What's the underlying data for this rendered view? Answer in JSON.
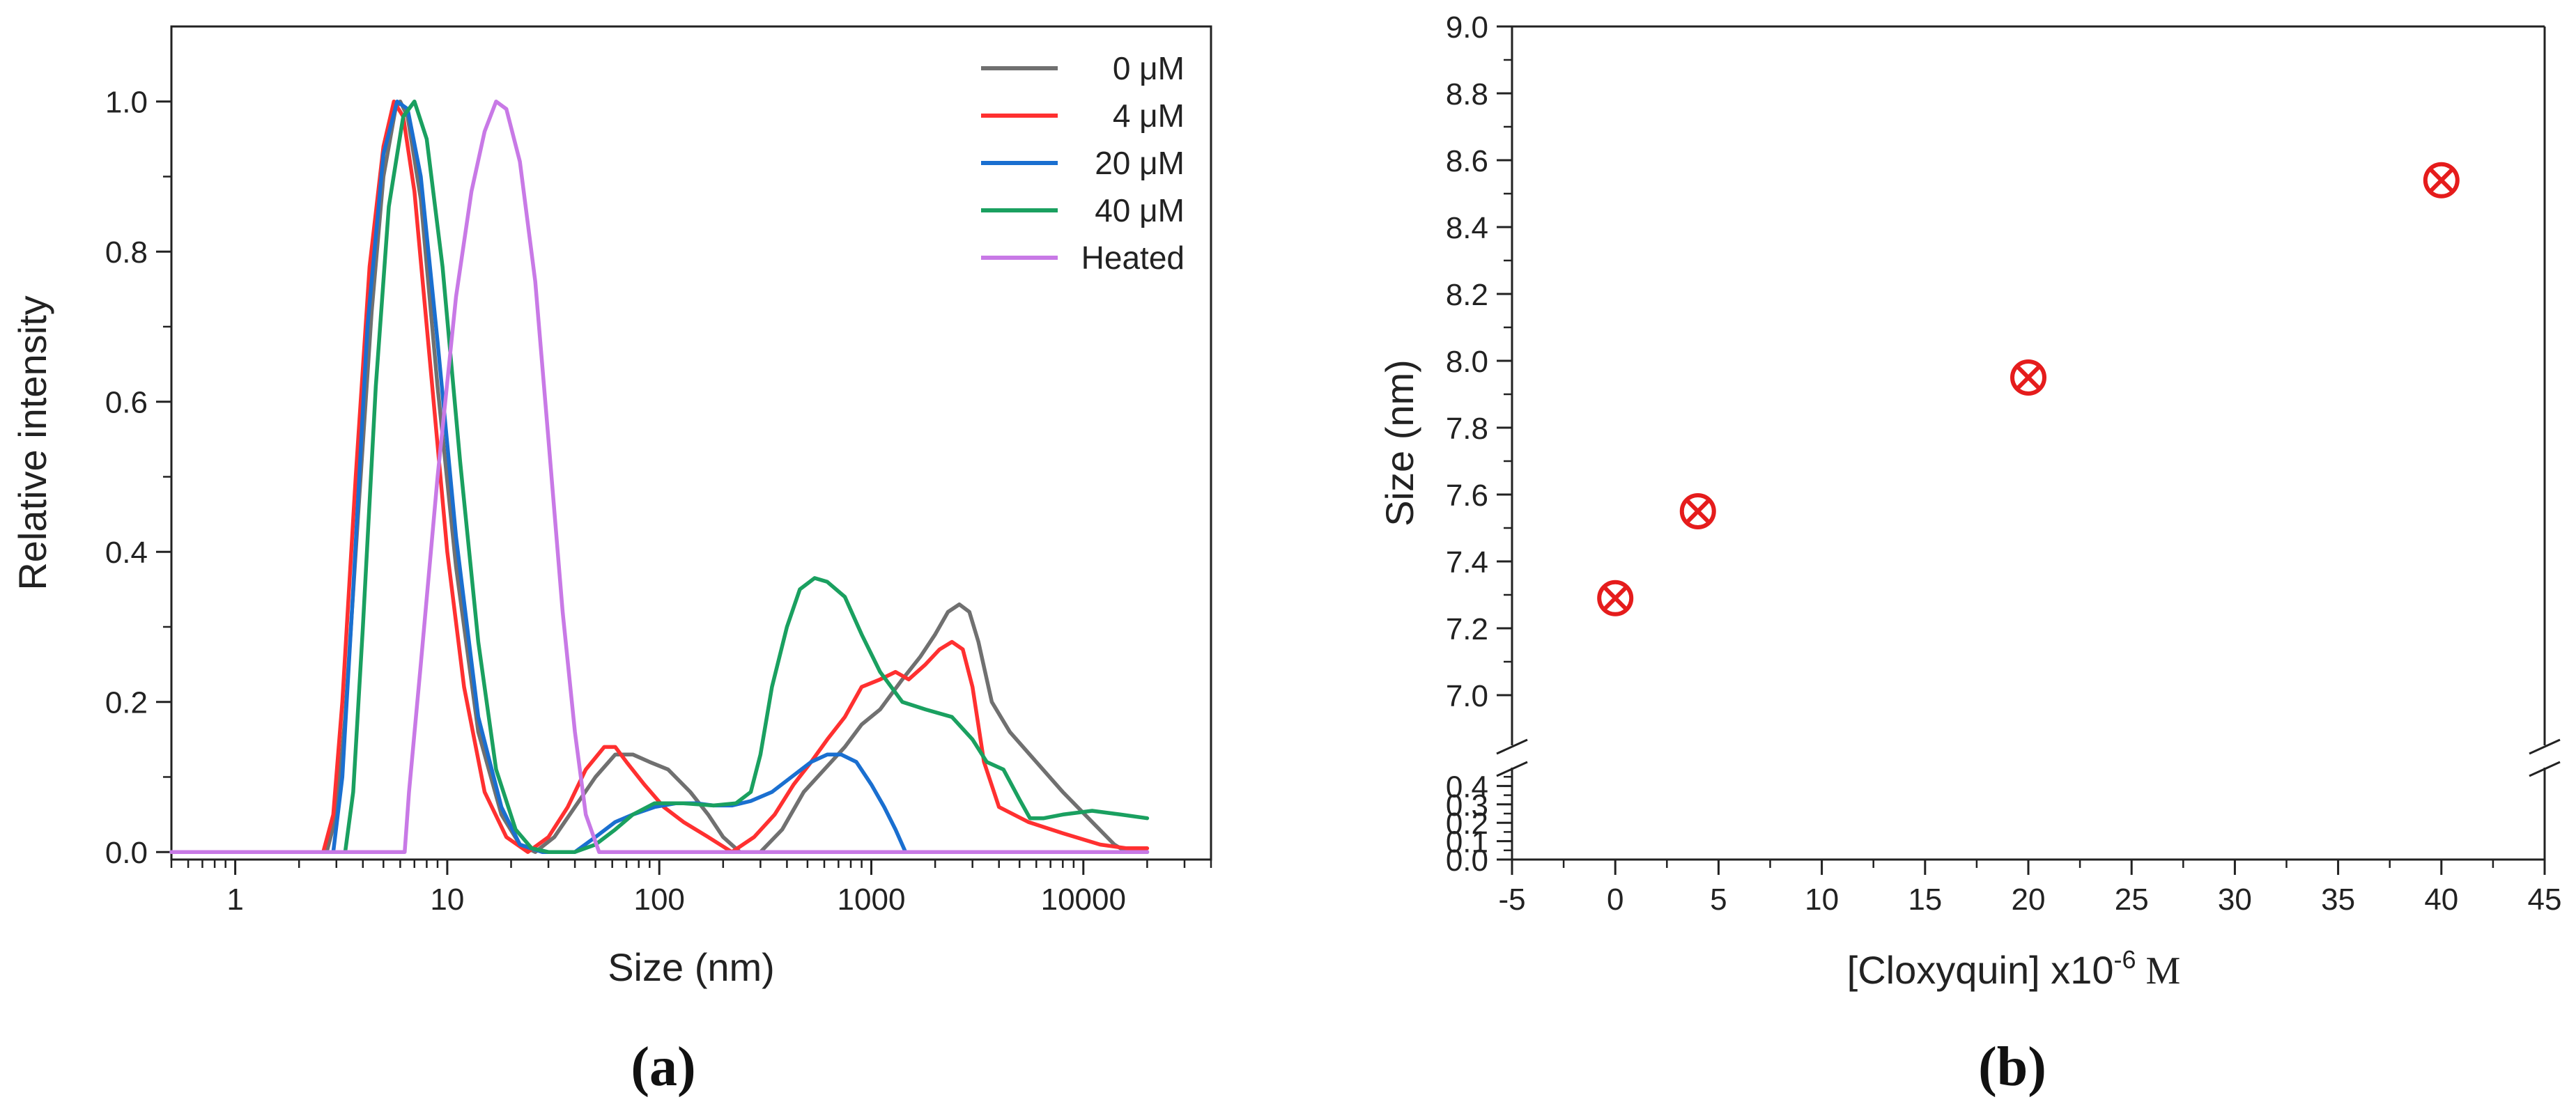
{
  "chart_data": [
    {
      "panel_label": "(a)",
      "type": "line",
      "xscale": "log",
      "xlabel": "Size (nm)",
      "ylabel": "Relative intensity",
      "xlim": [
        0.5,
        40000
      ],
      "ylim": [
        -0.01,
        1.1
      ],
      "x_ticks": [
        1,
        10,
        100,
        1000,
        10000
      ],
      "x_tick_labels": [
        "1",
        "10",
        "100",
        "1000",
        "10000"
      ],
      "y_ticks": [
        0.0,
        0.2,
        0.4,
        0.6,
        0.8,
        1.0
      ],
      "y_tick_labels": [
        "0.0",
        "0.2",
        "0.4",
        "0.6",
        "0.8",
        "1.0"
      ],
      "legend_position": "top-right",
      "series": [
        {
          "name": "0 μM",
          "color": "#707070",
          "points": [
            [
              0.5,
              0
            ],
            [
              2.7,
              0
            ],
            [
              3.0,
              0.05
            ],
            [
              3.3,
              0.18
            ],
            [
              3.8,
              0.45
            ],
            [
              4.4,
              0.72
            ],
            [
              5.0,
              0.9
            ],
            [
              5.7,
              0.99
            ],
            [
              6.0,
              1.0
            ],
            [
              6.5,
              0.98
            ],
            [
              7.5,
              0.87
            ],
            [
              9.0,
              0.62
            ],
            [
              11,
              0.38
            ],
            [
              14,
              0.16
            ],
            [
              18,
              0.05
            ],
            [
              22,
              0.01
            ],
            [
              26,
              0
            ],
            [
              32,
              0.02
            ],
            [
              40,
              0.06
            ],
            [
              50,
              0.1
            ],
            [
              62,
              0.13
            ],
            [
              75,
              0.13
            ],
            [
              90,
              0.12
            ],
            [
              110,
              0.11
            ],
            [
              140,
              0.08
            ],
            [
              170,
              0.05
            ],
            [
              200,
              0.02
            ],
            [
              240,
              0
            ],
            [
              300,
              0
            ],
            [
              380,
              0.03
            ],
            [
              480,
              0.08
            ],
            [
              600,
              0.11
            ],
            [
              750,
              0.14
            ],
            [
              900,
              0.17
            ],
            [
              1100,
              0.19
            ],
            [
              1400,
              0.23
            ],
            [
              1700,
              0.26
            ],
            [
              2000,
              0.29
            ],
            [
              2300,
              0.32
            ],
            [
              2600,
              0.33
            ],
            [
              2900,
              0.32
            ],
            [
              3200,
              0.28
            ],
            [
              3700,
              0.2
            ],
            [
              4500,
              0.16
            ],
            [
              6000,
              0.12
            ],
            [
              8000,
              0.08
            ],
            [
              11000,
              0.04
            ],
            [
              14000,
              0.01
            ],
            [
              16000,
              0
            ],
            [
              20000,
              0
            ]
          ]
        },
        {
          "name": "4 μM",
          "color": "#ff3030",
          "points": [
            [
              0.5,
              0
            ],
            [
              2.6,
              0
            ],
            [
              2.9,
              0.05
            ],
            [
              3.2,
              0.2
            ],
            [
              3.7,
              0.5
            ],
            [
              4.3,
              0.78
            ],
            [
              5.0,
              0.94
            ],
            [
              5.6,
              1.0
            ],
            [
              6.2,
              0.98
            ],
            [
              7.0,
              0.88
            ],
            [
              8.5,
              0.62
            ],
            [
              10,
              0.4
            ],
            [
              12,
              0.22
            ],
            [
              15,
              0.08
            ],
            [
              19,
              0.02
            ],
            [
              24,
              0
            ],
            [
              30,
              0.02
            ],
            [
              37,
              0.06
            ],
            [
              45,
              0.11
            ],
            [
              55,
              0.14
            ],
            [
              62,
              0.14
            ],
            [
              70,
              0.12
            ],
            [
              85,
              0.09
            ],
            [
              105,
              0.06
            ],
            [
              130,
              0.04
            ],
            [
              170,
              0.02
            ],
            [
              220,
              0
            ],
            [
              280,
              0.02
            ],
            [
              350,
              0.05
            ],
            [
              430,
              0.09
            ],
            [
              520,
              0.12
            ],
            [
              620,
              0.15
            ],
            [
              750,
              0.18
            ],
            [
              900,
              0.22
            ],
            [
              1100,
              0.23
            ],
            [
              1300,
              0.24
            ],
            [
              1500,
              0.23
            ],
            [
              1800,
              0.25
            ],
            [
              2100,
              0.27
            ],
            [
              2400,
              0.28
            ],
            [
              2700,
              0.27
            ],
            [
              3000,
              0.22
            ],
            [
              3400,
              0.12
            ],
            [
              4000,
              0.06
            ],
            [
              5500,
              0.04
            ],
            [
              8000,
              0.025
            ],
            [
              12000,
              0.01
            ],
            [
              16000,
              0.005
            ],
            [
              20000,
              0.005
            ]
          ]
        },
        {
          "name": "20 μM",
          "color": "#1a6fd0",
          "points": [
            [
              0.5,
              0
            ],
            [
              2.9,
              0
            ],
            [
              3.2,
              0.1
            ],
            [
              3.6,
              0.35
            ],
            [
              4.2,
              0.7
            ],
            [
              5.0,
              0.93
            ],
            [
              5.8,
              1.0
            ],
            [
              6.5,
              0.99
            ],
            [
              7.5,
              0.9
            ],
            [
              9.0,
              0.68
            ],
            [
              11,
              0.42
            ],
            [
              14,
              0.18
            ],
            [
              18,
              0.06
            ],
            [
              22,
              0.01
            ],
            [
              28,
              0
            ],
            [
              40,
              0
            ],
            [
              50,
              0.02
            ],
            [
              62,
              0.04
            ],
            [
              75,
              0.05
            ],
            [
              95,
              0.06
            ],
            [
              120,
              0.065
            ],
            [
              150,
              0.065
            ],
            [
              180,
              0.062
            ],
            [
              220,
              0.062
            ],
            [
              270,
              0.068
            ],
            [
              340,
              0.08
            ],
            [
              420,
              0.1
            ],
            [
              520,
              0.12
            ],
            [
              620,
              0.13
            ],
            [
              720,
              0.13
            ],
            [
              850,
              0.12
            ],
            [
              1000,
              0.09
            ],
            [
              1150,
              0.06
            ],
            [
              1300,
              0.03
            ],
            [
              1450,
              0
            ],
            [
              20000,
              0
            ]
          ]
        },
        {
          "name": "40 μM",
          "color": "#1aa060",
          "points": [
            [
              0.5,
              0
            ],
            [
              3.3,
              0
            ],
            [
              3.6,
              0.08
            ],
            [
              4.0,
              0.3
            ],
            [
              4.6,
              0.62
            ],
            [
              5.3,
              0.86
            ],
            [
              6.2,
              0.98
            ],
            [
              7.0,
              1.0
            ],
            [
              8.0,
              0.95
            ],
            [
              9.5,
              0.78
            ],
            [
              11.5,
              0.52
            ],
            [
              14,
              0.28
            ],
            [
              17,
              0.11
            ],
            [
              21,
              0.03
            ],
            [
              25,
              0.005
            ],
            [
              30,
              0
            ],
            [
              40,
              0
            ],
            [
              50,
              0.01
            ],
            [
              62,
              0.03
            ],
            [
              75,
              0.05
            ],
            [
              95,
              0.065
            ],
            [
              130,
              0.065
            ],
            [
              180,
              0.062
            ],
            [
              230,
              0.065
            ],
            [
              270,
              0.08
            ],
            [
              300,
              0.13
            ],
            [
              340,
              0.22
            ],
            [
              400,
              0.3
            ],
            [
              460,
              0.35
            ],
            [
              540,
              0.365
            ],
            [
              620,
              0.36
            ],
            [
              750,
              0.34
            ],
            [
              900,
              0.29
            ],
            [
              1100,
              0.24
            ],
            [
              1400,
              0.2
            ],
            [
              1800,
              0.19
            ],
            [
              2400,
              0.18
            ],
            [
              3000,
              0.15
            ],
            [
              3500,
              0.12
            ],
            [
              4200,
              0.11
            ],
            [
              5000,
              0.07
            ],
            [
              5600,
              0.045
            ],
            [
              6500,
              0.045
            ],
            [
              8000,
              0.05
            ],
            [
              11000,
              0.055
            ],
            [
              15000,
              0.05
            ],
            [
              20000,
              0.045
            ]
          ]
        },
        {
          "name": "Heated",
          "color": "#c879e6",
          "points": [
            [
              0.5,
              0
            ],
            [
              6.3,
              0
            ],
            [
              6.6,
              0.08
            ],
            [
              7.5,
              0.25
            ],
            [
              9.0,
              0.5
            ],
            [
              11,
              0.74
            ],
            [
              13,
              0.88
            ],
            [
              15,
              0.96
            ],
            [
              17,
              1.0
            ],
            [
              19,
              0.99
            ],
            [
              22,
              0.92
            ],
            [
              26,
              0.76
            ],
            [
              30,
              0.55
            ],
            [
              35,
              0.32
            ],
            [
              40,
              0.16
            ],
            [
              45,
              0.05
            ],
            [
              52,
              0
            ],
            [
              20000,
              0
            ]
          ]
        }
      ]
    },
    {
      "panel_label": "(b)",
      "type": "scatter",
      "xlabel_main": "[Cloxyquin] x10",
      "xlabel_sup": "-6",
      "xlabel_unit": " M",
      "ylabel": "Size (nm)",
      "xlim": [
        -5,
        45
      ],
      "x_ticks": [
        -5,
        0,
        5,
        10,
        15,
        20,
        25,
        30,
        35,
        40,
        45
      ],
      "x_tick_labels": [
        "-5",
        "0",
        "5",
        "10",
        "15",
        "20",
        "25",
        "30",
        "35",
        "40",
        "45"
      ],
      "y_break": true,
      "y_lower_range": [
        0.0,
        0.5
      ],
      "y_upper_range": [
        6.85,
        9.0
      ],
      "y_ticks_lower": [
        0.0,
        0.1,
        0.2,
        0.3,
        0.4
      ],
      "y_tick_labels_lower": [
        "0.0",
        "0.1",
        "0.2",
        "0.3",
        "0.4"
      ],
      "y_ticks_upper": [
        7.0,
        7.2,
        7.4,
        7.6,
        7.8,
        8.0,
        8.2,
        8.4,
        8.6,
        8.8,
        9.0
      ],
      "y_tick_labels_upper": [
        "7.0",
        "7.2",
        "7.4",
        "7.6",
        "7.8",
        "8.0",
        "8.2",
        "8.4",
        "8.6",
        "8.8",
        "9.0"
      ],
      "marker_color": "#e51c1c",
      "points": [
        [
          0,
          7.29
        ],
        [
          4,
          7.55
        ],
        [
          20,
          7.95
        ],
        [
          40,
          8.54
        ]
      ]
    }
  ]
}
